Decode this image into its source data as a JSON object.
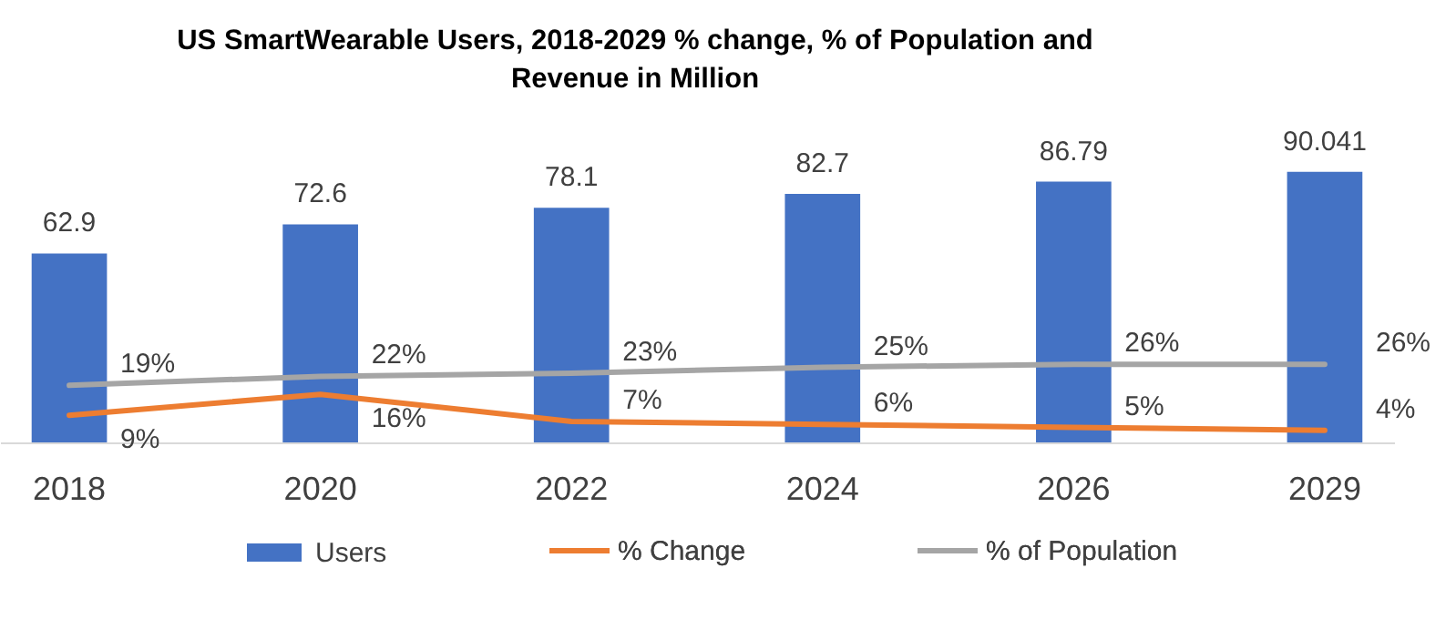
{
  "chart_data": {
    "type": "bar",
    "title": "US SmartWearable Users, 2018-2029 % change, % of Population and Revenue in Million",
    "categories": [
      "2018",
      "2020",
      "2022",
      "2024",
      "2026",
      "2029"
    ],
    "series": [
      {
        "name": "Users",
        "color": "#4472c4",
        "values": [
          62.9,
          72.6,
          78.1,
          82.7,
          86.79,
          90.041
        ],
        "value_labels": [
          "62.9",
          "72.6",
          "78.1",
          "82.7",
          "86.79",
          "90.041"
        ]
      },
      {
        "name": "% Change",
        "type": "line",
        "color": "#ed7d31",
        "values": [
          9,
          16,
          7,
          6,
          5,
          4
        ],
        "value_labels": [
          "9%",
          "16%",
          "7%",
          "6%",
          "5%",
          "4%"
        ]
      },
      {
        "name": "% of Population",
        "type": "line",
        "color": "#a5a5a5",
        "values": [
          19,
          22,
          23,
          25,
          26,
          26
        ],
        "value_labels": [
          "19%",
          "22%",
          "23%",
          "25%",
          "26%",
          "26%"
        ]
      }
    ],
    "legend": "bottom",
    "tick_labels": "x",
    "grid": false,
    "marker": "none",
    "line_style": "solid"
  }
}
